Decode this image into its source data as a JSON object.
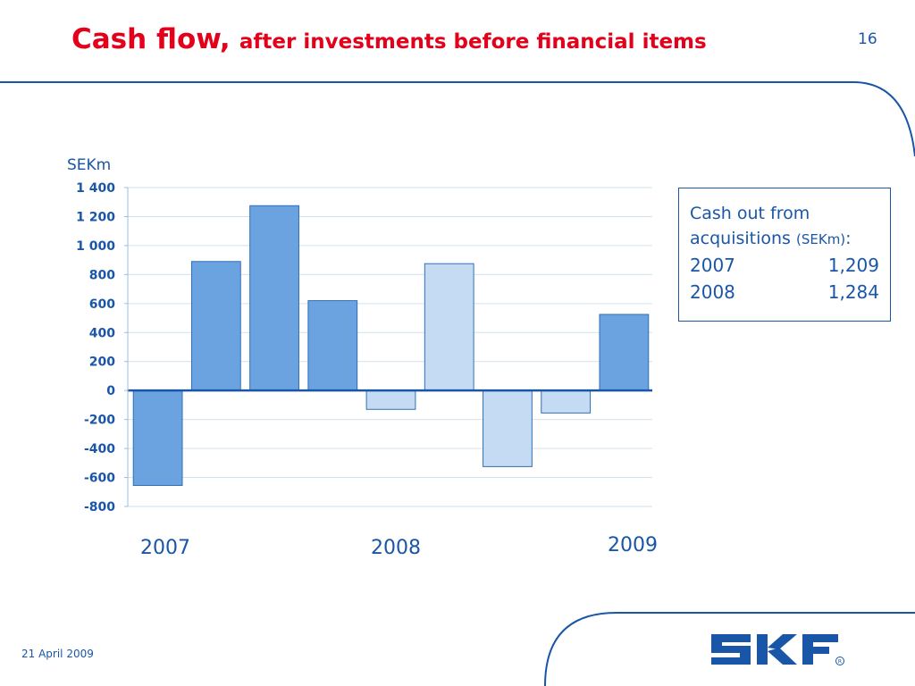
{
  "slide": {
    "title_main": "Cash flow,",
    "title_sub": "after investments before financial items",
    "page_number": "16",
    "footer_date": "21 April 2009",
    "logo_text": "SKF"
  },
  "colors": {
    "title": "#e3001b",
    "text": "#1a56a8",
    "bar_dark": "#6aa3e0",
    "bar_light": "#c5dbf4",
    "bar_border": "#2f6fb8",
    "gridline": "#d0e2ef",
    "zero_line": "#1a56a8"
  },
  "chart_data": {
    "type": "bar",
    "ylabel": "SEKm",
    "ylim": [
      -800,
      1400
    ],
    "yticks": [
      1400,
      1200,
      1000,
      800,
      600,
      400,
      200,
      0,
      -200,
      -400,
      -600,
      -800
    ],
    "ytick_labels": [
      "1 400",
      "1 200",
      "1 000",
      "800",
      "600",
      "400",
      "200",
      "0",
      "-200",
      "-400",
      "-600",
      "-800"
    ],
    "grid": true,
    "year_labels": [
      "2007",
      "2008",
      "2009"
    ],
    "bars": [
      {
        "year": "2007",
        "value": -655,
        "shade": "dark"
      },
      {
        "year": "2007",
        "value": 890,
        "shade": "dark"
      },
      {
        "year": "2007",
        "value": 1275,
        "shade": "dark"
      },
      {
        "year": "2007",
        "value": 620,
        "shade": "dark"
      },
      {
        "year": "2008",
        "value": -130,
        "shade": "light"
      },
      {
        "year": "2008",
        "value": 875,
        "shade": "light"
      },
      {
        "year": "2008",
        "value": -525,
        "shade": "light"
      },
      {
        "year": "2008",
        "value": -155,
        "shade": "light"
      },
      {
        "year": "2009",
        "value": 525,
        "shade": "dark"
      }
    ]
  },
  "info_box": {
    "title_line1": "Cash out from",
    "title_line2": "acquisitions",
    "unit": "(SEKm)",
    "colon": ":",
    "rows": [
      {
        "year": "2007",
        "value": "1,209"
      },
      {
        "year": "2008",
        "value": "1,284"
      }
    ]
  }
}
